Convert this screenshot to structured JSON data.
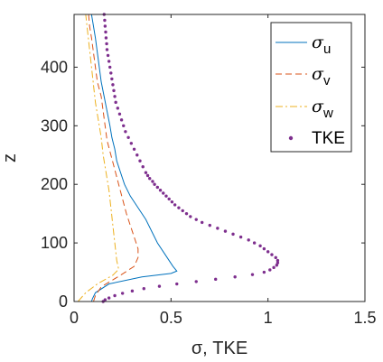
{
  "chart_data": {
    "type": "line",
    "xlabel": "σ, TKE",
    "ylabel": "z",
    "xlim": [
      0,
      1.5
    ],
    "ylim": [
      0,
      490
    ],
    "xticks": [
      "0",
      "0.5",
      "1",
      "1.5"
    ],
    "yticks": [
      "0",
      "100",
      "200",
      "300",
      "400"
    ],
    "legend_position": "top-right",
    "series": [
      {
        "name": "σu",
        "name_base": "σ",
        "name_sub": "u",
        "style": "solid",
        "color": "#0072BD",
        "points": [
          [
            0.09,
            0
          ],
          [
            0.095,
            5
          ],
          [
            0.11,
            15
          ],
          [
            0.18,
            30
          ],
          [
            0.35,
            42
          ],
          [
            0.5,
            48
          ],
          [
            0.53,
            52
          ],
          [
            0.51,
            60
          ],
          [
            0.47,
            80
          ],
          [
            0.43,
            100
          ],
          [
            0.4,
            120
          ],
          [
            0.37,
            140
          ],
          [
            0.33,
            160
          ],
          [
            0.29,
            180
          ],
          [
            0.26,
            200
          ],
          [
            0.24,
            220
          ],
          [
            0.22,
            240
          ],
          [
            0.21,
            260
          ],
          [
            0.195,
            280
          ],
          [
            0.185,
            300
          ],
          [
            0.17,
            325
          ],
          [
            0.155,
            350
          ],
          [
            0.14,
            375
          ],
          [
            0.13,
            400
          ],
          [
            0.12,
            425
          ],
          [
            0.11,
            450
          ],
          [
            0.1,
            470
          ],
          [
            0.09,
            490
          ]
        ]
      },
      {
        "name": "σv",
        "name_base": "σ",
        "name_sub": "v",
        "style": "dashed",
        "color": "#D95319",
        "points": [
          [
            0.1,
            0
          ],
          [
            0.11,
            10
          ],
          [
            0.14,
            25
          ],
          [
            0.24,
            45
          ],
          [
            0.31,
            60
          ],
          [
            0.33,
            75
          ],
          [
            0.33,
            90
          ],
          [
            0.31,
            110
          ],
          [
            0.29,
            130
          ],
          [
            0.27,
            150
          ],
          [
            0.25,
            175
          ],
          [
            0.23,
            200
          ],
          [
            0.21,
            225
          ],
          [
            0.19,
            250
          ],
          [
            0.17,
            275
          ],
          [
            0.16,
            300
          ],
          [
            0.15,
            325
          ],
          [
            0.14,
            350
          ],
          [
            0.12,
            375
          ],
          [
            0.11,
            400
          ],
          [
            0.1,
            425
          ],
          [
            0.09,
            450
          ],
          [
            0.08,
            470
          ],
          [
            0.075,
            490
          ]
        ]
      },
      {
        "name": "σw",
        "name_base": "σ",
        "name_sub": "w",
        "style": "dashdot",
        "color": "#EDB120",
        "points": [
          [
            0.02,
            0
          ],
          [
            0.06,
            15
          ],
          [
            0.12,
            30
          ],
          [
            0.2,
            45
          ],
          [
            0.23,
            55
          ],
          [
            0.22,
            70
          ],
          [
            0.21,
            100
          ],
          [
            0.2,
            130
          ],
          [
            0.19,
            160
          ],
          [
            0.18,
            190
          ],
          [
            0.165,
            220
          ],
          [
            0.15,
            250
          ],
          [
            0.14,
            280
          ],
          [
            0.125,
            310
          ],
          [
            0.11,
            340
          ],
          [
            0.1,
            370
          ],
          [
            0.09,
            400
          ],
          [
            0.08,
            430
          ],
          [
            0.07,
            460
          ],
          [
            0.06,
            490
          ]
        ]
      },
      {
        "name": "TKE",
        "style": "dots",
        "color": "#7E2F8E",
        "points": [
          [
            0.15,
            0
          ],
          [
            0.16,
            3
          ],
          [
            0.18,
            6
          ],
          [
            0.21,
            10
          ],
          [
            0.25,
            14
          ],
          [
            0.3,
            18
          ],
          [
            0.36,
            22
          ],
          [
            0.44,
            26
          ],
          [
            0.53,
            30
          ],
          [
            0.63,
            34
          ],
          [
            0.73,
            38
          ],
          [
            0.83,
            42
          ],
          [
            0.92,
            46
          ],
          [
            0.98,
            50
          ],
          [
            1.01,
            54
          ],
          [
            1.03,
            58
          ],
          [
            1.045,
            62
          ],
          [
            1.05,
            66
          ],
          [
            1.05,
            70
          ],
          [
            1.04,
            75
          ],
          [
            1.02,
            80
          ],
          [
            1.0,
            85
          ],
          [
            0.98,
            90
          ],
          [
            0.96,
            95
          ],
          [
            0.93,
            100
          ],
          [
            0.9,
            105
          ],
          [
            0.86,
            110
          ],
          [
            0.82,
            115
          ],
          [
            0.78,
            120
          ],
          [
            0.74,
            125
          ],
          [
            0.7,
            130
          ],
          [
            0.66,
            135
          ],
          [
            0.63,
            140
          ],
          [
            0.6,
            145
          ],
          [
            0.58,
            150
          ],
          [
            0.56,
            155
          ],
          [
            0.54,
            160
          ],
          [
            0.52,
            165
          ],
          [
            0.505,
            170
          ],
          [
            0.49,
            175
          ],
          [
            0.475,
            180
          ],
          [
            0.46,
            185
          ],
          [
            0.445,
            190
          ],
          [
            0.43,
            195
          ],
          [
            0.415,
            200
          ],
          [
            0.405,
            205
          ],
          [
            0.39,
            210
          ],
          [
            0.38,
            215
          ],
          [
            0.37,
            220
          ],
          [
            0.355,
            230
          ],
          [
            0.34,
            240
          ],
          [
            0.325,
            250
          ],
          [
            0.31,
            260
          ],
          [
            0.295,
            270
          ],
          [
            0.28,
            280
          ],
          [
            0.265,
            290
          ],
          [
            0.255,
            300
          ],
          [
            0.245,
            310
          ],
          [
            0.235,
            320
          ],
          [
            0.225,
            330
          ],
          [
            0.215,
            340
          ],
          [
            0.21,
            350
          ],
          [
            0.205,
            360
          ],
          [
            0.2,
            370
          ],
          [
            0.195,
            380
          ],
          [
            0.19,
            390
          ],
          [
            0.185,
            400
          ],
          [
            0.18,
            410
          ],
          [
            0.175,
            420
          ],
          [
            0.17,
            430
          ],
          [
            0.168,
            440
          ],
          [
            0.165,
            450
          ],
          [
            0.163,
            460
          ],
          [
            0.16,
            470
          ],
          [
            0.158,
            480
          ],
          [
            0.155,
            490
          ]
        ]
      }
    ]
  }
}
